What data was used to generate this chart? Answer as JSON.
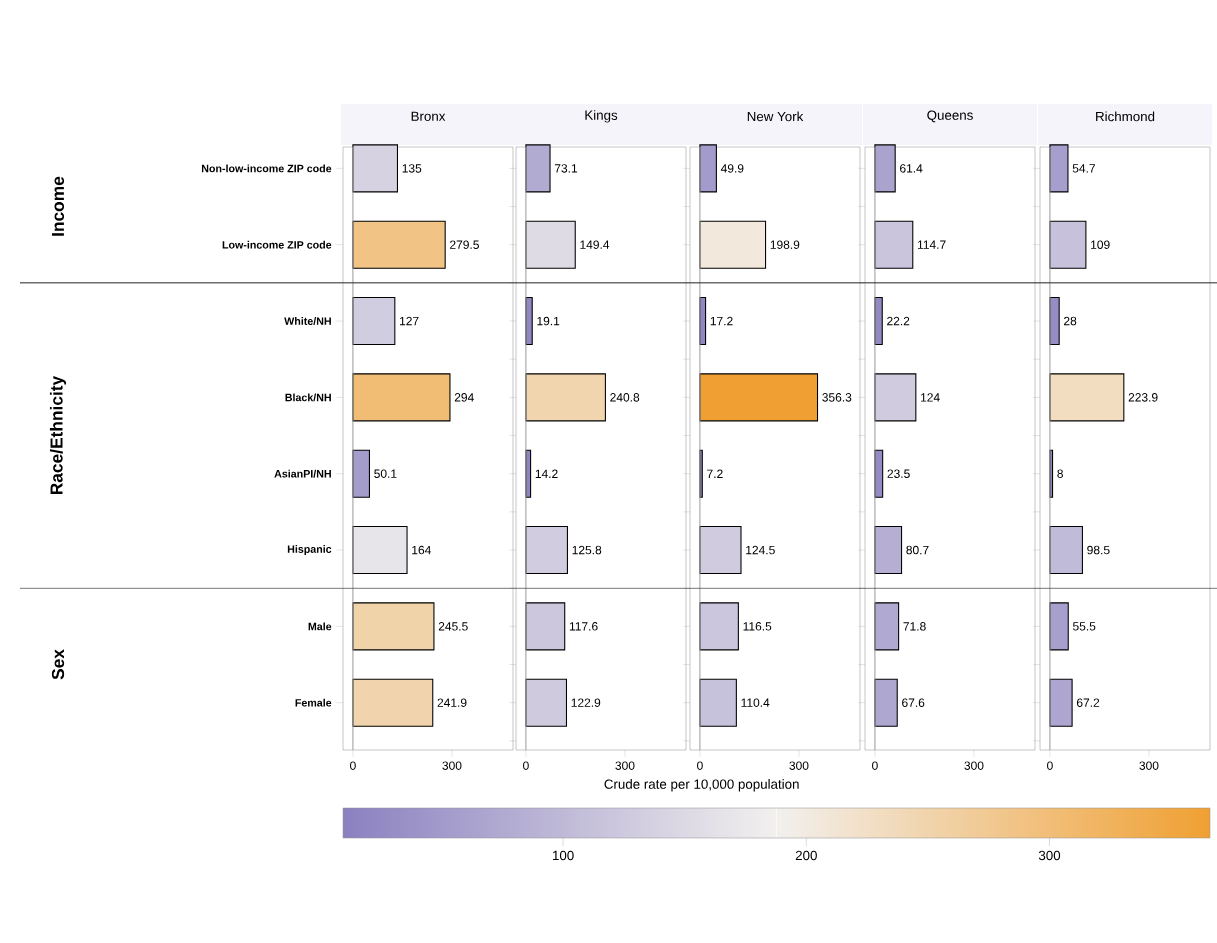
{
  "chart_data": [
    {
      "type": "bar",
      "orientation": "horizontal",
      "title": "Bronx",
      "categories": [
        "Non-low-income ZIP code",
        "Low-income ZIP code",
        "White/NH",
        "Black/NH",
        "AsianPI/NH",
        "Hispanic",
        "Male",
        "Female"
      ],
      "values": [
        135,
        279.5,
        127,
        294,
        50.1,
        164,
        245.5,
        241.9
      ],
      "colors": [
        "#d6d2e2",
        "#f1c385",
        "#d1cde0",
        "#f1bd75",
        "#a49ccb",
        "#e7e5e9",
        "#f1d3a9",
        "#f1d4ad"
      ],
      "xlim": [
        -30,
        485
      ],
      "xticks": [
        0,
        300
      ],
      "data_labels": true,
      "ref_lines": [
        {
          "axis": "x",
          "value": 0,
          "color": "#a0a0a0"
        }
      ],
      "annotations": [
        "Income",
        "Race/Ethnicity",
        "Sex"
      ]
    },
    {
      "type": "bar",
      "orientation": "horizontal",
      "title": "Kings",
      "categories": [
        null,
        null,
        null,
        null,
        null,
        null,
        null,
        null
      ],
      "values": [
        73.1,
        149.4,
        19.1,
        240.8,
        14.2,
        125.8,
        117.6,
        122.9
      ],
      "colors": [
        "#b1aad1",
        "#dfdbe5",
        "#9188c3",
        "#f1d5ae",
        "#8e84c2",
        "#d1ccdf",
        "#ccc7dd",
        "#cfcade"
      ],
      "xlim": [
        -30,
        485
      ],
      "xticks": [
        0,
        300
      ],
      "data_labels": true,
      "tick_labels": "x",
      "ref_lines": [
        {
          "axis": "x",
          "value": 0,
          "color": "#a0a0a0"
        }
      ]
    },
    {
      "type": "bar",
      "orientation": "horizontal",
      "title": "New York",
      "xlabel": "Crude rate per 10,000 population",
      "categories": [
        null,
        null,
        null,
        null,
        null,
        null,
        null,
        null
      ],
      "values": [
        49.9,
        198.9,
        17.2,
        356.3,
        7.2,
        124.5,
        116.5,
        110.4
      ],
      "colors": [
        "#a39bcb",
        "#f2e8dc",
        "#9086c3",
        "#f0a032",
        "#8a80c0",
        "#d0cbdf",
        "#cbc6dd",
        "#c7c2db"
      ],
      "xlim": [
        -30,
        485
      ],
      "xticks": [
        0,
        300
      ],
      "data_labels": true,
      "tick_labels": "x",
      "ref_lines": [
        {
          "axis": "x",
          "value": 0,
          "color": "#a0a0a0"
        }
      ],
      "clim": [
        9.5,
        366
      ],
      "cticks": [
        100,
        200,
        300
      ]
    },
    {
      "type": "bar",
      "orientation": "horizontal",
      "title": "Queens",
      "categories": [
        null,
        null,
        null,
        null,
        null,
        null,
        null,
        null
      ],
      "values": [
        61.4,
        114.7,
        22.2,
        124,
        23.5,
        80.7,
        71.8,
        67.6
      ],
      "colors": [
        "#aaa3ce",
        "#cac5dc",
        "#938ac4",
        "#d0cbdf",
        "#948ac4",
        "#b6afd3",
        "#b0a9d1",
        "#aea7d0"
      ],
      "xlim": [
        -30,
        485
      ],
      "xticks": [
        0,
        300
      ],
      "data_labels": true,
      "tick_labels": "x",
      "ref_lines": [
        {
          "axis": "x",
          "value": 0,
          "color": "#a0a0a0"
        }
      ]
    },
    {
      "type": "bar",
      "orientation": "horizontal",
      "title": "Richmond",
      "categories": [
        null,
        null,
        null,
        null,
        null,
        null,
        null,
        null
      ],
      "values": [
        54.7,
        109,
        28,
        223.9,
        8,
        98.5,
        55.5,
        67.2
      ],
      "colors": [
        "#a69ecd",
        "#c7c1db",
        "#968dc5",
        "#f2ddc1",
        "#8b81c0",
        "#c0bbd8",
        "#a79fcd",
        "#aea6d0"
      ],
      "xlim": [
        -30,
        485
      ],
      "xticks": [
        0,
        300
      ],
      "data_labels": true,
      "tick_labels": "x",
      "ref_lines": [
        {
          "axis": "x",
          "value": 0,
          "color": "#a0a0a0"
        }
      ]
    }
  ]
}
